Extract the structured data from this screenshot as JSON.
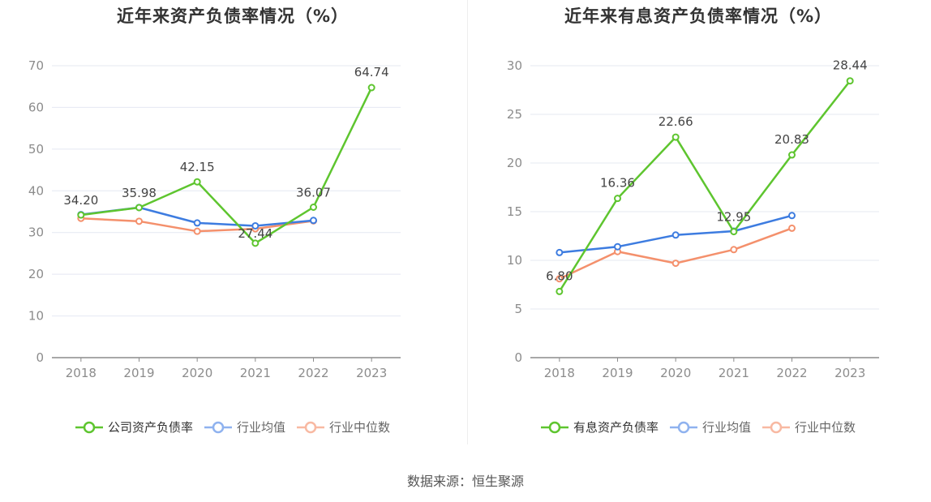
{
  "charts": [
    {
      "title": "近年来资产负债率情况（%）",
      "legend": [
        "公司资产负债率",
        "行业均值",
        "行业中位数"
      ]
    },
    {
      "title": "近年来有息资产负债率情况（%）",
      "legend": [
        "有息资产负债率",
        "行业均值",
        "行业中位数"
      ]
    }
  ],
  "source": "数据来源：恒生聚源",
  "colors": {
    "company": "#5ec52f",
    "industry_avg": "#3d7ce0",
    "industry_median": "#f4906c",
    "axis": "#8c8c8c",
    "grid": "#e4e8f2",
    "text": "#444444"
  },
  "chart_data": [
    {
      "type": "line",
      "title": "近年来资产负债率情况（%）",
      "categories": [
        "2018",
        "2019",
        "2020",
        "2021",
        "2022",
        "2023"
      ],
      "ylim": [
        0,
        70
      ],
      "yticks": [
        0,
        10,
        20,
        30,
        40,
        50,
        60,
        70
      ],
      "series": [
        {
          "name": "公司资产负债率",
          "values": [
            34.2,
            35.98,
            42.15,
            27.44,
            36.07,
            64.74
          ],
          "labels": [
            "34.20",
            "35.98",
            "42.15",
            "27.44",
            "36.07",
            "64.74"
          ]
        },
        {
          "name": "行业均值",
          "values": [
            34.3,
            36.0,
            32.3,
            31.6,
            32.9,
            null
          ]
        },
        {
          "name": "行业中位数",
          "values": [
            33.4,
            32.7,
            30.3,
            30.9,
            32.8,
            null
          ]
        }
      ]
    },
    {
      "type": "line",
      "title": "近年来有息资产负债率情况（%）",
      "categories": [
        "2018",
        "2019",
        "2020",
        "2021",
        "2022",
        "2023"
      ],
      "ylim": [
        0,
        30
      ],
      "yticks": [
        0,
        5,
        10,
        15,
        20,
        25,
        30
      ],
      "series": [
        {
          "name": "有息资产负债率",
          "values": [
            6.8,
            16.36,
            22.66,
            12.95,
            20.83,
            28.44
          ],
          "labels": [
            "6.80",
            "16.36",
            "22.66",
            "12.95",
            "20.83",
            "28.44"
          ]
        },
        {
          "name": "行业均值",
          "values": [
            10.8,
            11.4,
            12.6,
            13.0,
            14.6,
            null
          ]
        },
        {
          "name": "行业中位数",
          "values": [
            8.1,
            10.9,
            9.7,
            11.1,
            13.3,
            null
          ]
        }
      ]
    }
  ]
}
